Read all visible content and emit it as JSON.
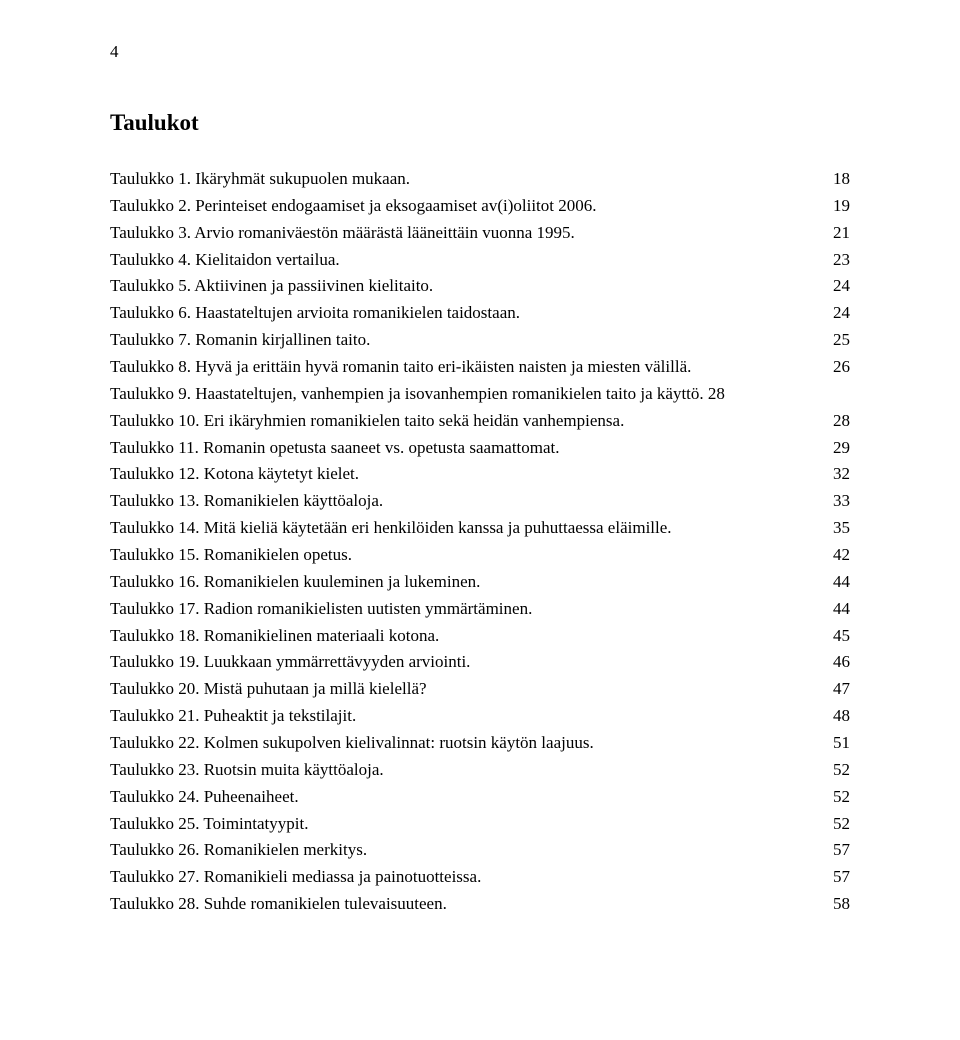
{
  "page_number": "4",
  "heading": "Taulukot",
  "entries": [
    {
      "label": "Taulukko 1. Ikäryhmät sukupuolen mukaan.",
      "page": "18"
    },
    {
      "label": "Taulukko 2. Perinteiset endogaamiset ja eksogaamiset av(i)oliitot 2006.",
      "page": "19"
    },
    {
      "label": "Taulukko 3. Arvio romaniväestön määrästä lääneittäin vuonna 1995.",
      "page": "21"
    },
    {
      "label": "Taulukko 4. Kielitaidon vertailua.",
      "page": "23"
    },
    {
      "label": "Taulukko 5. Aktiivinen ja passiivinen kielitaito.",
      "page": "24"
    },
    {
      "label": "Taulukko 6. Haastateltujen arvioita romanikielen taidostaan.",
      "page": "24"
    },
    {
      "label": "Taulukko 7. Romanin kirjallinen taito.",
      "page": "25"
    },
    {
      "label": "Taulukko 8. Hyvä ja erittäin hyvä romanin taito eri-ikäisten naisten ja miesten välillä.",
      "page": "26"
    },
    {
      "label_line1": "Taulukko 9. Haastateltujen,  vanhempien ja isovanhempien romanikielen taito ja käyttö.",
      "page_inline": "28",
      "multiline_no_leader": true
    },
    {
      "label": "Taulukko 10. Eri ikäryhmien romanikielen taito sekä heidän vanhempiensa.",
      "page": "28"
    },
    {
      "label": "Taulukko 11. Romanin opetusta saaneet vs. opetusta saamattomat.",
      "page": "29"
    },
    {
      "label": "Taulukko 12. Kotona käytetyt kielet.",
      "page": "32"
    },
    {
      "label": "Taulukko 13. Romanikielen käyttöaloja.",
      "page": "33"
    },
    {
      "label": "Taulukko 14. Mitä kieliä käytetään eri henkilöiden kanssa ja puhuttaessa eläimille.",
      "page": "35"
    },
    {
      "label": "Taulukko 15. Romanikielen opetus.",
      "page": "42"
    },
    {
      "label": "Taulukko 16. Romanikielen kuuleminen ja lukeminen.",
      "page": "44"
    },
    {
      "label": "Taulukko 17. Radion romanikielisten uutisten ymmärtäminen.",
      "page": "44"
    },
    {
      "label": "Taulukko 18. Romanikielinen materiaali kotona.",
      "page": "45"
    },
    {
      "label": "Taulukko 19. Luukkaan ymmärrettävyyden arviointi.",
      "page": "46"
    },
    {
      "label": "Taulukko 20. Mistä puhutaan ja millä kielellä?",
      "page": "47"
    },
    {
      "label": "Taulukko 21. Puheaktit ja tekstilajit.",
      "page": "48"
    },
    {
      "label": "Taulukko 22. Kolmen sukupolven kielivalinnat: ruotsin käytön laajuus.",
      "page": "51"
    },
    {
      "label": "Taulukko 23. Ruotsin muita käyttöaloja.",
      "page": "52"
    },
    {
      "label": "Taulukko 24. Puheenaiheet.",
      "page": "52"
    },
    {
      "label": "Taulukko 25. Toimintatyypit.",
      "page": "52"
    },
    {
      "label": "Taulukko 26. Romanikielen merkitys.",
      "page": "57"
    },
    {
      "label": "Taulukko 27. Romanikieli mediassa ja painotuotteissa.",
      "page": "57"
    },
    {
      "label": "Taulukko 28. Suhde romanikielen tulevaisuuteen.",
      "page": "58"
    }
  ]
}
